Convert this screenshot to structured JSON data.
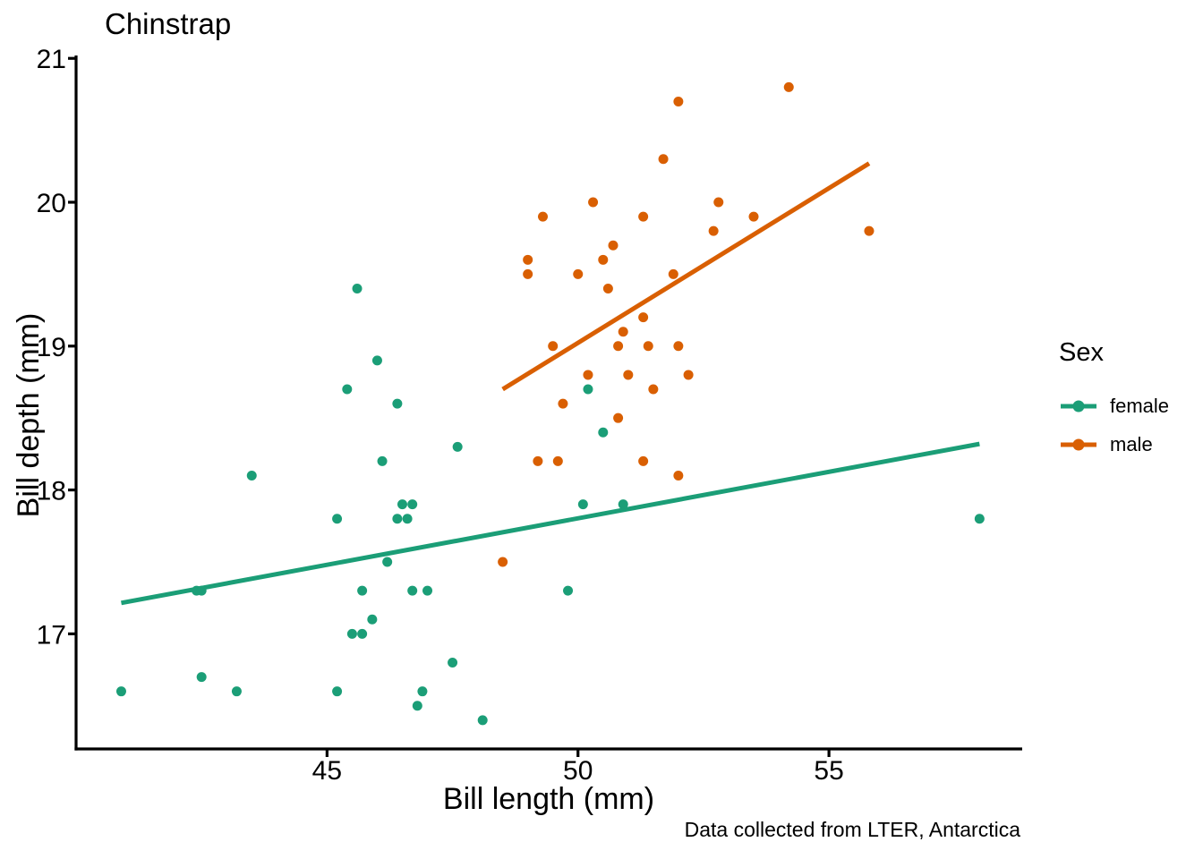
{
  "figure": {
    "title": "Chinstrap",
    "caption": "Data collected from LTER, Antarctica"
  },
  "chart_data": {
    "type": "scatter",
    "title": "Chinstrap",
    "xlabel": "Bill length (mm)",
    "ylabel": "Bill depth (mm)",
    "caption": "Data collected from LTER, Antarctica",
    "xlim": [
      40.0,
      58.85
    ],
    "ylim": [
      16.2,
      21.02
    ],
    "xticks": [
      45,
      50,
      55
    ],
    "yticks": [
      17,
      18,
      19,
      20,
      21
    ],
    "grid": false,
    "axis_color": "#000000",
    "legend": {
      "title": "Sex",
      "position": "right",
      "entries": [
        {
          "label": "female",
          "color": "#1b9e77"
        },
        {
          "label": "male",
          "color": "#d95f02"
        }
      ]
    },
    "series": [
      {
        "name": "female",
        "color": "#1b9e77",
        "points": [
          [
            46.5,
            17.9
          ],
          [
            45.4,
            18.7
          ],
          [
            45.2,
            17.8
          ],
          [
            46.1,
            18.2
          ],
          [
            46.0,
            18.9
          ],
          [
            46.6,
            17.8
          ],
          [
            47.0,
            17.3
          ],
          [
            45.9,
            17.1
          ],
          [
            58.0,
            17.8
          ],
          [
            46.4,
            18.6
          ],
          [
            42.4,
            17.3
          ],
          [
            43.2,
            16.6
          ],
          [
            46.7,
            17.3
          ],
          [
            50.5,
            18.4
          ],
          [
            46.4,
            17.8
          ],
          [
            40.9,
            16.6
          ],
          [
            42.5,
            16.7
          ],
          [
            47.5,
            16.8
          ],
          [
            47.6,
            18.3
          ],
          [
            46.9,
            16.6
          ],
          [
            46.2,
            17.5
          ],
          [
            45.5,
            17.0
          ],
          [
            50.9,
            17.9
          ],
          [
            50.1,
            17.9
          ],
          [
            49.8,
            17.3
          ],
          [
            48.1,
            16.4
          ],
          [
            45.7,
            17.3
          ],
          [
            42.5,
            17.3
          ],
          [
            45.2,
            16.6
          ],
          [
            45.6,
            19.4
          ],
          [
            46.8,
            16.5
          ],
          [
            45.7,
            17.0
          ],
          [
            43.5,
            18.1
          ],
          [
            50.2,
            18.7
          ],
          [
            46.7,
            17.9
          ]
        ],
        "trendline": {
          "x1": 40.9,
          "y1": 17.215,
          "x2": 58.0,
          "y2": 18.32
        }
      },
      {
        "name": "male",
        "color": "#d95f02",
        "points": [
          [
            50.0,
            19.5
          ],
          [
            51.3,
            19.2
          ],
          [
            52.7,
            19.8
          ],
          [
            51.3,
            18.2
          ],
          [
            51.3,
            19.9
          ],
          [
            51.7,
            20.3
          ],
          [
            52.0,
            18.1
          ],
          [
            50.5,
            19.6
          ],
          [
            50.3,
            20.0
          ],
          [
            49.2,
            18.2
          ],
          [
            48.5,
            17.5
          ],
          [
            50.6,
            19.4
          ],
          [
            52.0,
            19.0
          ],
          [
            49.5,
            19.0
          ],
          [
            52.8,
            20.0
          ],
          [
            54.2,
            20.8
          ],
          [
            51.0,
            18.8
          ],
          [
            49.7,
            18.6
          ],
          [
            52.0,
            20.7
          ],
          [
            53.5,
            19.9
          ],
          [
            49.0,
            19.5
          ],
          [
            50.9,
            19.1
          ],
          [
            50.8,
            18.5
          ],
          [
            49.0,
            19.6
          ],
          [
            51.5,
            18.7
          ],
          [
            50.7,
            19.7
          ],
          [
            52.2,
            18.8
          ],
          [
            49.3,
            19.9
          ],
          [
            50.2,
            18.8
          ],
          [
            51.9,
            19.5
          ],
          [
            55.8,
            19.8
          ],
          [
            51.4,
            19.0
          ],
          [
            49.6,
            18.2
          ],
          [
            50.8,
            19.0
          ]
        ],
        "trendline": {
          "x1": 48.5,
          "y1": 18.7,
          "x2": 55.8,
          "y2": 20.27
        }
      }
    ],
    "style": {
      "point_radius": 5.5,
      "line_width": 5,
      "axis_line_width": 3.2,
      "tick_length": 9
    }
  }
}
